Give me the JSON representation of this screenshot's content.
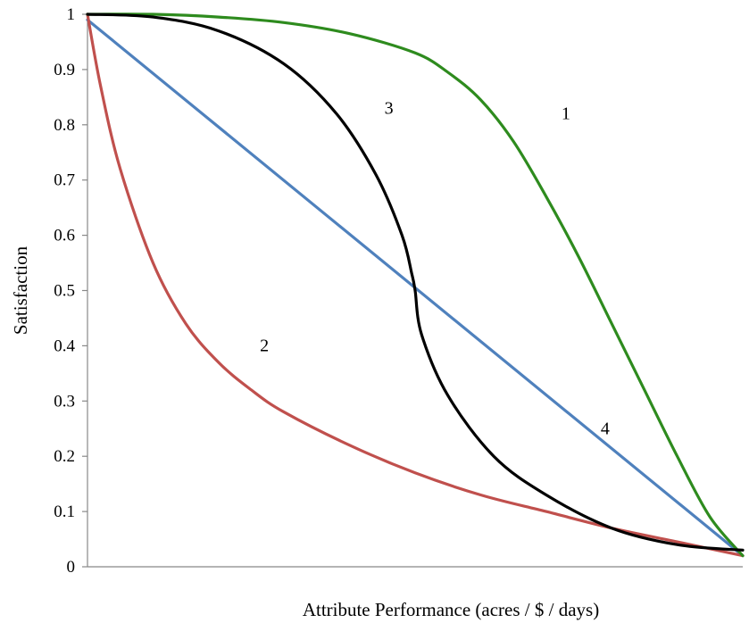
{
  "chart_data": {
    "type": "line",
    "title": "",
    "xlabel": "Attribute Performance (acres / $ / days)",
    "ylabel": "Satisfaction",
    "xlim": [
      0,
      1
    ],
    "ylim": [
      0,
      1
    ],
    "yticks": [
      "0",
      "0.1",
      "0.2",
      "0.3",
      "0.4",
      "0.5",
      "0.6",
      "0.7",
      "0.8",
      "0.9",
      "1"
    ],
    "grid": false,
    "legend": "none",
    "series": [
      {
        "name": "1",
        "color": "#2E8B1E",
        "x": [
          0,
          0.1,
          0.2,
          0.3,
          0.4,
          0.5,
          0.55,
          0.6,
          0.65,
          0.7,
          0.75,
          0.8,
          0.85,
          0.9,
          0.95,
          1.0
        ],
        "y": [
          1.0,
          1.0,
          0.995,
          0.985,
          0.965,
          0.93,
          0.895,
          0.845,
          0.77,
          0.67,
          0.56,
          0.44,
          0.32,
          0.2,
          0.09,
          0.02
        ]
      },
      {
        "name": "2",
        "color": "#C0504D",
        "x": [
          0,
          0.02,
          0.05,
          0.1,
          0.15,
          0.2,
          0.25,
          0.3,
          0.4,
          0.5,
          0.6,
          0.7,
          0.8,
          0.9,
          1.0
        ],
        "y": [
          1.0,
          0.87,
          0.72,
          0.55,
          0.44,
          0.37,
          0.32,
          0.28,
          0.22,
          0.17,
          0.13,
          0.1,
          0.07,
          0.045,
          0.02
        ]
      },
      {
        "name": "3",
        "color": "#000000",
        "x": [
          0,
          0.1,
          0.2,
          0.3,
          0.38,
          0.44,
          0.48,
          0.495,
          0.5,
          0.51,
          0.55,
          0.62,
          0.7,
          0.8,
          0.9,
          1.0
        ],
        "y": [
          1.0,
          0.995,
          0.97,
          0.91,
          0.82,
          0.71,
          0.6,
          0.53,
          0.5,
          0.42,
          0.31,
          0.2,
          0.13,
          0.07,
          0.04,
          0.03
        ]
      },
      {
        "name": "4",
        "color": "#4F81BD",
        "x": [
          0,
          1
        ],
        "y": [
          0.99,
          0.02
        ]
      }
    ],
    "annotations": [
      {
        "text": "1",
        "x": 0.73,
        "y": 0.81
      },
      {
        "text": "2",
        "x": 0.27,
        "y": 0.39
      },
      {
        "text": "3",
        "x": 0.46,
        "y": 0.82
      },
      {
        "text": "4",
        "x": 0.79,
        "y": 0.24
      }
    ]
  }
}
